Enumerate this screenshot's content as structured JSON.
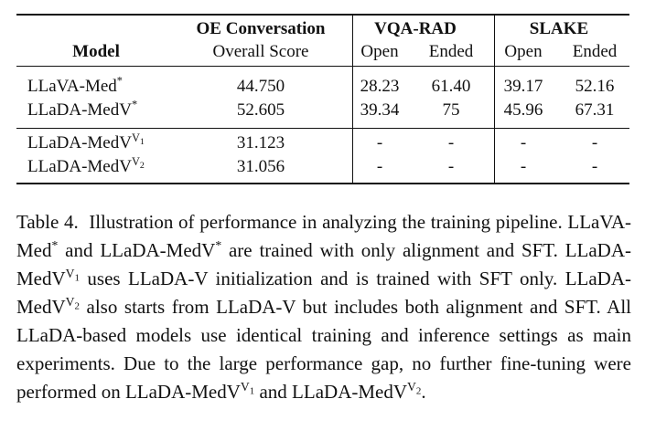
{
  "table": {
    "model_header": "Model",
    "groups": [
      {
        "title": "OE Conversation",
        "sub": [
          "Overall Score"
        ]
      },
      {
        "title": "VQA-RAD",
        "sub": [
          "Open",
          "Ended"
        ]
      },
      {
        "title": "SLAKE",
        "sub": [
          "Open",
          "Ended"
        ]
      }
    ],
    "rows": [
      [
        {
          "base": "LLaVA-Med",
          "sup": "*"
        },
        "44.750",
        "28.23",
        "61.40",
        "39.17",
        "52.16"
      ],
      [
        {
          "base": "LLaDA-MedV",
          "sup": "*"
        },
        "52.605",
        "39.34",
        "75",
        "45.96",
        "67.31"
      ],
      [
        {
          "base": "LLaDA-MedV",
          "sup": "V",
          "sub": "1"
        },
        "31.123",
        "-",
        "-",
        "-",
        "-"
      ],
      [
        {
          "base": "LLaDA-MedV",
          "sup": "V",
          "sub": "2"
        },
        "31.056",
        "-",
        "-",
        "-",
        "-"
      ]
    ]
  },
  "caption": {
    "label": "Table 4.",
    "parts": [
      {
        "text": "Illustration of performance in analyzing the training pipeline. LLaVA-Med"
      },
      {
        "sup": "*"
      },
      {
        "text": " and LLaDA-MedV"
      },
      {
        "sup": "*"
      },
      {
        "text": " are trained with only alignment and SFT. LLaDA-MedV"
      },
      {
        "sup": "V",
        "sub": "1"
      },
      {
        "text": " uses LLaDA-V initialization and is trained with SFT only. LLaDA-MedV"
      },
      {
        "sup": "V",
        "sub": "2"
      },
      {
        "text": " also starts from LLaDA-V but includes both alignment and SFT. All LLaDA-based models use identical training and inference settings as main experiments. Due to the large performance gap, no further fine-tuning were performed on LLaDA-MedV"
      },
      {
        "sup": "V",
        "sub": "1"
      },
      {
        "text": " and LLaDA-MedV"
      },
      {
        "sup": "V",
        "sub": "2"
      },
      {
        "text": "."
      }
    ]
  }
}
